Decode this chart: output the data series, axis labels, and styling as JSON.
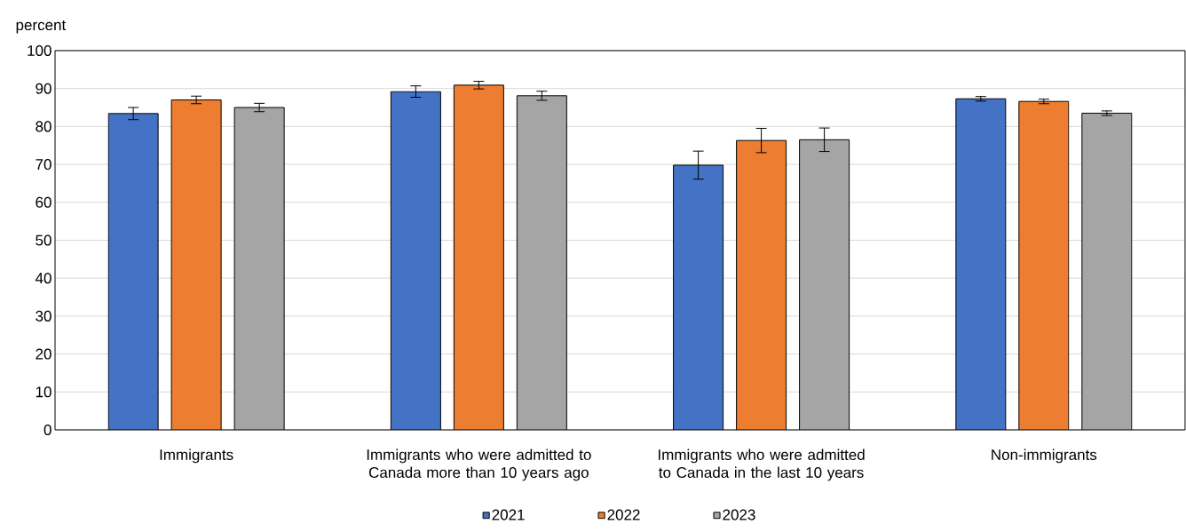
{
  "chart_data": {
    "type": "bar",
    "ylabel": "percent",
    "categories": [
      "Immigrants",
      "Immigrants who were admitted to Canada more than 10 years ago",
      "Immigrants who were admitted to Canada in the last 10 years",
      "Non-immigrants"
    ],
    "series": [
      {
        "name": "2021",
        "color": "#4472c4",
        "values": [
          83.4,
          89.2,
          69.8,
          87.3
        ],
        "errors": [
          1.6,
          1.5,
          3.7,
          0.6
        ]
      },
      {
        "name": "2022",
        "color": "#ed7d31",
        "values": [
          87.0,
          90.9,
          76.3,
          86.6
        ],
        "errors": [
          1.0,
          1.0,
          3.2,
          0.6
        ]
      },
      {
        "name": "2023",
        "color": "#a5a5a5",
        "values": [
          85.0,
          88.1,
          76.5,
          83.5
        ],
        "errors": [
          1.1,
          1.2,
          3.1,
          0.6
        ]
      }
    ],
    "ylim": [
      0,
      100
    ],
    "yticks": [
      0,
      10,
      20,
      30,
      40,
      50,
      60,
      70,
      80,
      90,
      100
    ],
    "grid": "y",
    "legend": "bottom"
  }
}
